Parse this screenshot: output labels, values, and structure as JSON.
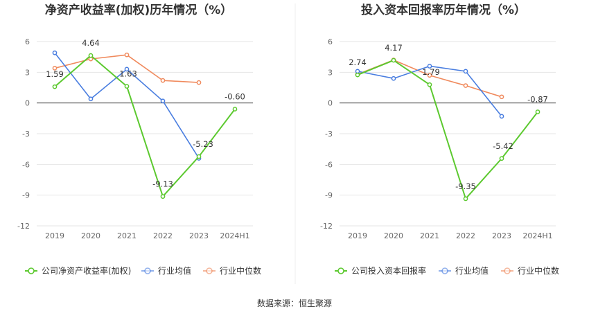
{
  "source": "数据来源：恒生聚源",
  "chart_data": [
    {
      "type": "line",
      "title": "净资产收益率(加权)历年情况（%）",
      "categories": [
        "2019",
        "2020",
        "2021",
        "2022",
        "2023",
        "2024H1"
      ],
      "yticks": [
        "6",
        "3",
        "0",
        "-3",
        "-6",
        "-9",
        "-12"
      ],
      "ylim": [
        -12,
        6
      ],
      "grid": true,
      "legend_position": "bottom",
      "series": [
        {
          "name": "公司净资产收益率(加权)",
          "color": "#5cc92f",
          "values": [
            1.59,
            4.64,
            1.63,
            -9.13,
            -5.23,
            -0.6
          ],
          "labels": [
            "1.59",
            "4.64",
            "1.63",
            "-9.13",
            "-5.23",
            "-0.60"
          ]
        },
        {
          "name": "行业均值",
          "color": "#4a7ee0",
          "values": [
            4.9,
            0.4,
            3.3,
            0.2,
            -5.4,
            null
          ]
        },
        {
          "name": "行业中位数",
          "color": "#f08a5d",
          "values": [
            3.4,
            4.3,
            4.7,
            2.2,
            2.0,
            null
          ]
        }
      ]
    },
    {
      "type": "line",
      "title": "投入资本回报率历年情况（%）",
      "categories": [
        "2019",
        "2020",
        "2021",
        "2022",
        "2023",
        "2024H1"
      ],
      "yticks": [
        "6",
        "3",
        "0",
        "-3",
        "-6",
        "-9",
        "-12"
      ],
      "ylim": [
        -12,
        6
      ],
      "grid": true,
      "legend_position": "bottom",
      "series": [
        {
          "name": "公司投入资本回报率",
          "color": "#5cc92f",
          "values": [
            2.74,
            4.17,
            1.79,
            -9.35,
            -5.42,
            -0.87
          ],
          "labels": [
            "2.74",
            "4.17",
            "1.79",
            "-9.35",
            "-5.42",
            "-0.87"
          ]
        },
        {
          "name": "行业均值",
          "color": "#4a7ee0",
          "values": [
            3.1,
            2.4,
            3.6,
            3.1,
            -1.3,
            null
          ]
        },
        {
          "name": "行业中位数",
          "color": "#f08a5d",
          "values": [
            2.8,
            4.2,
            2.7,
            1.7,
            0.6,
            null
          ]
        }
      ]
    }
  ]
}
